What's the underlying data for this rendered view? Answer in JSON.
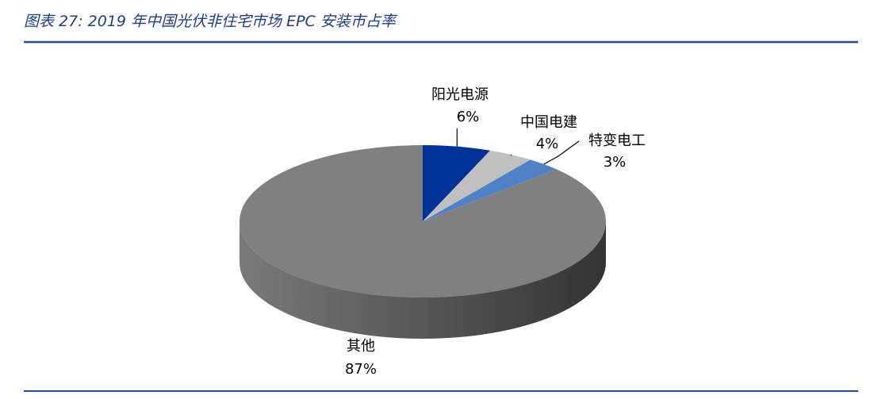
{
  "chart_data": {
    "type": "pie3d",
    "title": "图表 27: 2019 年中国光伏非住宅市场 EPC 安装市占率",
    "categories": [
      "阳光电源",
      "中国电建",
      "特变电工",
      "其他"
    ],
    "values": [
      6,
      4,
      3,
      87
    ],
    "value_labels": [
      "6%",
      "4%",
      "3%",
      "87%"
    ],
    "colors": [
      "#003399",
      "#c0c0c0",
      "#4f81c7",
      "#808080"
    ]
  }
}
